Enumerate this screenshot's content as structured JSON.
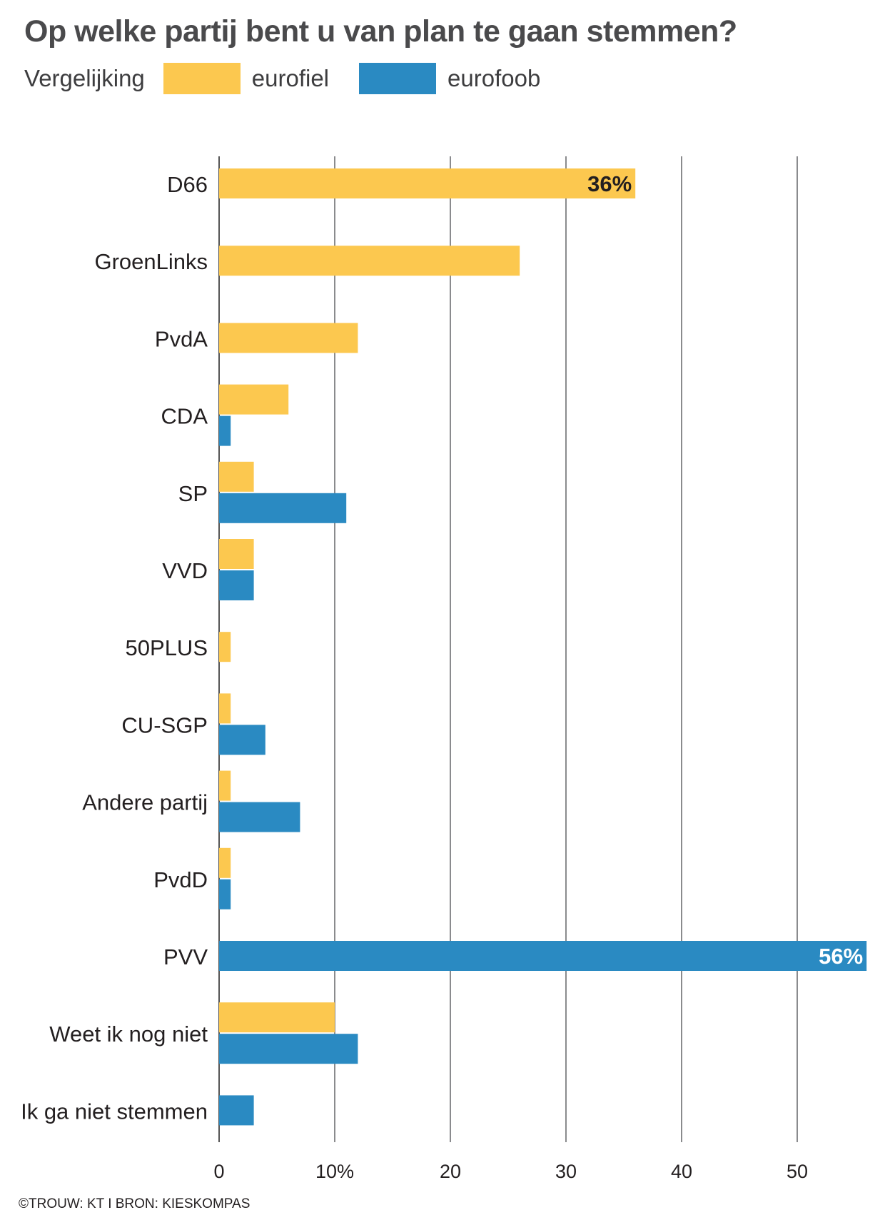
{
  "title": "Op welke partij bent u van plan te gaan stemmen?",
  "legend": {
    "label": "Vergelijking",
    "items": [
      {
        "name": "eurofiel",
        "color": "#fcc84f"
      },
      {
        "name": "eurofoob",
        "color": "#2a8ac2"
      }
    ]
  },
  "footer": "©TROUW: KT I BRON: KIESKOMPAS",
  "chart_data": {
    "type": "bar",
    "orientation": "horizontal",
    "title": "Op welke partij bent u van plan te gaan stemmen?",
    "categories": [
      "D66",
      "GroenLinks",
      "PvdA",
      "CDA",
      "SP",
      "VVD",
      "50PLUS",
      "CU-SGP",
      "Andere partij",
      "PvdD",
      "PVV",
      "Weet ik nog niet",
      "Ik ga niet stemmen"
    ],
    "series": [
      {
        "name": "eurofiel",
        "color": "#fcc84f",
        "values": [
          36,
          26,
          12,
          6,
          3,
          3,
          1,
          1,
          1,
          1,
          0,
          10,
          0
        ]
      },
      {
        "name": "eurofoob",
        "color": "#2a8ac2",
        "values": [
          0,
          0,
          0,
          1,
          11,
          3,
          0,
          4,
          7,
          1,
          56,
          12,
          3
        ]
      }
    ],
    "data_labels": [
      {
        "series": "eurofiel",
        "category": "D66",
        "text": "36%"
      },
      {
        "series": "eurofoob",
        "category": "PVV",
        "text": "56%"
      }
    ],
    "x_ticks": [
      {
        "value": 0,
        "label": "0"
      },
      {
        "value": 10,
        "label": "10%"
      },
      {
        "value": 20,
        "label": "20"
      },
      {
        "value": 30,
        "label": "30"
      },
      {
        "value": 40,
        "label": "40"
      },
      {
        "value": 50,
        "label": "50"
      }
    ],
    "xlim": [
      0,
      56
    ],
    "grid": true,
    "legend_position": "top-left"
  }
}
